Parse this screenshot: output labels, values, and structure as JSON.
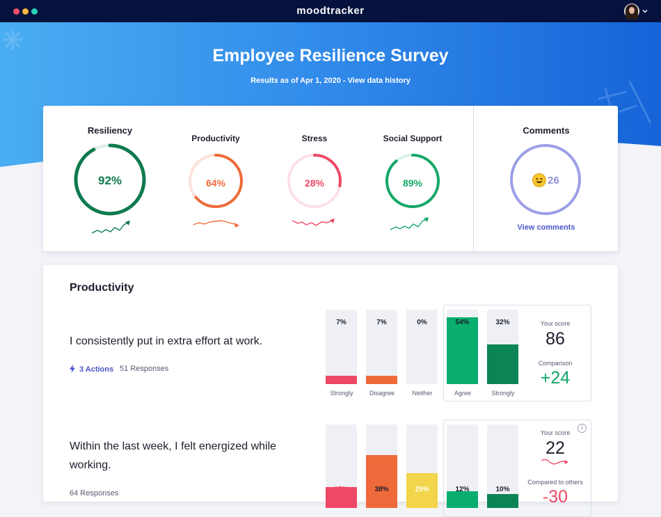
{
  "app": {
    "title": "moodtracker"
  },
  "hero": {
    "title": "Employee Resilience Survey",
    "subtitle_prefix": "Results as of Apr 1, 2020 - ",
    "subtitle_link": "View data history"
  },
  "summary": {
    "metrics": [
      {
        "label": "Resiliency",
        "value": "92%",
        "percent": 92,
        "color": "#0e7a4e",
        "track": "#e2f1ea",
        "trend": "up",
        "trend_color": "#0e7a4e"
      },
      {
        "label": "Productivity",
        "value": "64%",
        "percent": 64,
        "color": "#ef6a3a",
        "track": "#fde3da",
        "trend": "down",
        "trend_color": "#ef6a3a"
      },
      {
        "label": "Stress",
        "value": "28%",
        "percent": 28,
        "color": "#ee4866",
        "track": "#fde0e5",
        "trend": "up",
        "trend_color": "#ee4866"
      },
      {
        "label": "Social Support",
        "value": "89%",
        "percent": 89,
        "color": "#14a868",
        "track": "#dbf2e6",
        "trend": "up",
        "trend_color": "#14a868"
      }
    ],
    "comments": {
      "label": "Comments",
      "count": "26",
      "link": "View comments",
      "ring_color": "#9b9fe6"
    }
  },
  "section": {
    "title": "Productivity",
    "questions": [
      {
        "text": "I consistently put in extra effort at work.",
        "actions": "3 Actions",
        "responses": "51 Responses",
        "bars": [
          {
            "pct": "7%",
            "value": 7,
            "color": "#ee4866",
            "category": "Strongly"
          },
          {
            "pct": "7%",
            "value": 7,
            "color": "#ef6a3a",
            "category": "Disagree"
          },
          {
            "pct": "0%",
            "value": 0,
            "color": "#f5d44a",
            "category": "Neither"
          },
          {
            "pct": "54%",
            "value": 54,
            "color": "#0aae6e",
            "category": "Agree"
          },
          {
            "pct": "32%",
            "value": 32,
            "color": "#0c8454",
            "category": "Strongly"
          }
        ],
        "score_label": "Your score",
        "score": "86",
        "comparison_label": "Comparison",
        "comparison": "+24"
      },
      {
        "text": "Within the last week, I felt energized while working.",
        "responses": "64 Responses",
        "bars": [
          {
            "pct": "15%",
            "value": 15,
            "color": "#ee4866"
          },
          {
            "pct": "38%",
            "value": 38,
            "color": "#ef6a3a"
          },
          {
            "pct": "25%",
            "value": 25,
            "color": "#f2d54b"
          },
          {
            "pct": "12%",
            "value": 12,
            "color": "#0aae6e"
          },
          {
            "pct": "10%",
            "value": 10,
            "color": "#0c8454"
          }
        ],
        "score_label": "Your score",
        "score": "22",
        "comparison_label": "Compared to others",
        "comparison": "-30"
      }
    ]
  }
}
